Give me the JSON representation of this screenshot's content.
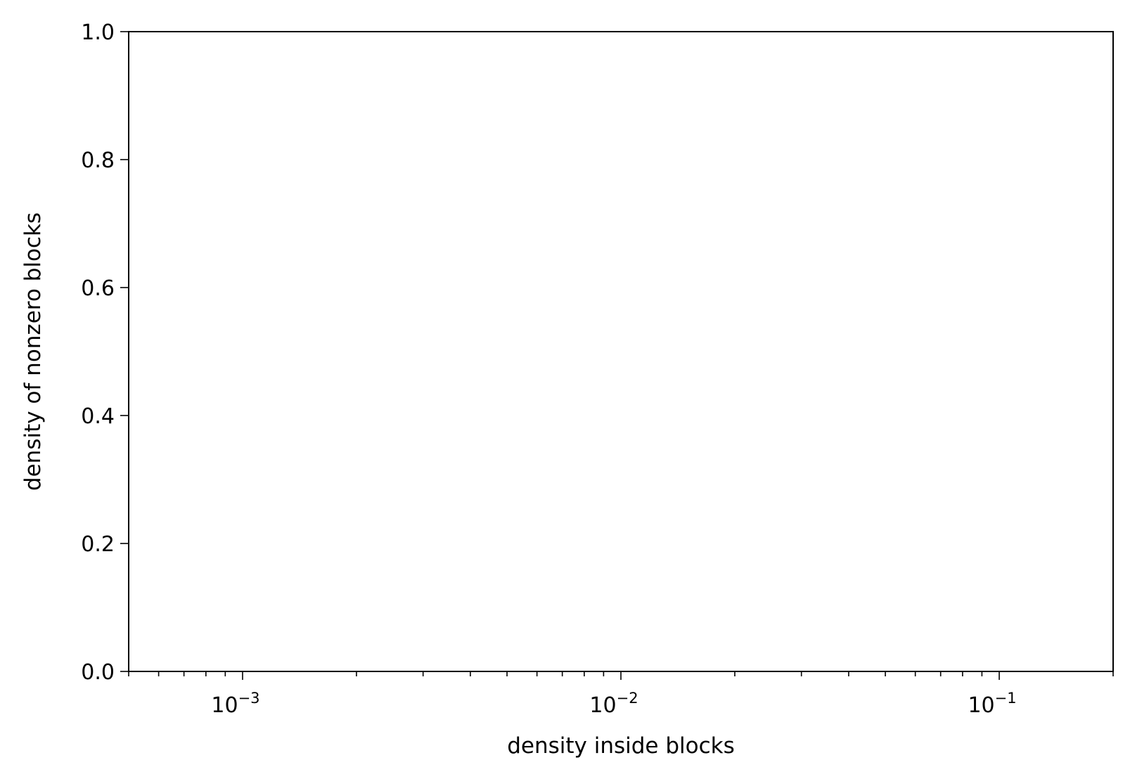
{
  "chart_data": {
    "type": "scatter",
    "title": "",
    "xlabel": "density inside blocks",
    "ylabel": "density of nonzero blocks",
    "xscale": "log",
    "xlim": [
      0.0005,
      0.2
    ],
    "ylim": [
      0.0,
      1.0
    ],
    "grid": false,
    "legend": "none",
    "series": [],
    "x_ticks": [
      {
        "value": 0.001,
        "base": "10",
        "exp": "−3"
      },
      {
        "value": 0.01,
        "base": "10",
        "exp": "−2"
      },
      {
        "value": 0.1,
        "base": "10",
        "exp": "−1"
      }
    ],
    "y_ticks": [
      {
        "value": 0.0,
        "label": "0.0"
      },
      {
        "value": 0.2,
        "label": "0.2"
      },
      {
        "value": 0.4,
        "label": "0.4"
      },
      {
        "value": 0.6,
        "label": "0.6"
      },
      {
        "value": 0.8,
        "label": "0.8"
      },
      {
        "value": 1.0,
        "label": "1.0"
      }
    ],
    "colors": {
      "axis": "#000000",
      "background": "#ffffff"
    }
  }
}
